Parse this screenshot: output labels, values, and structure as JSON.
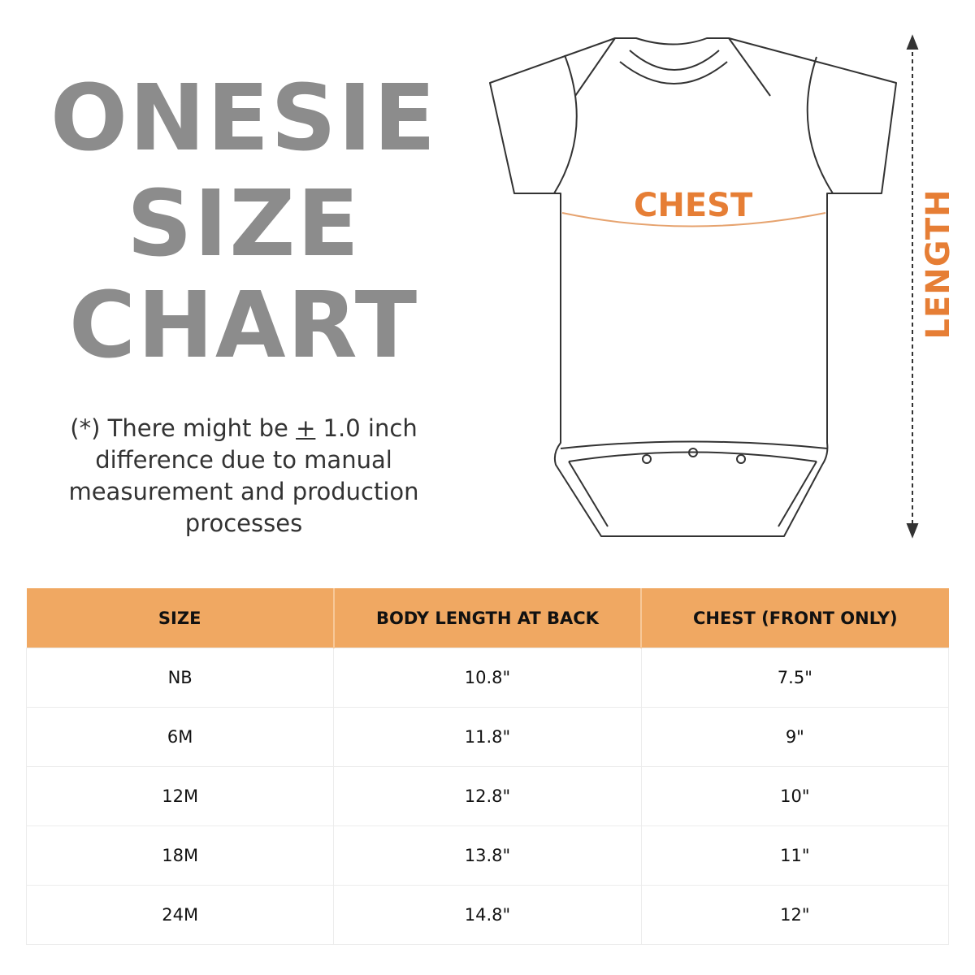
{
  "title": {
    "line1": "ONESIE",
    "line2": "SIZE",
    "line3": "CHART"
  },
  "note": {
    "prefix": "(*) There might be ",
    "plus_minus": "+",
    "suffix": " 1.0 inch difference due to manual measurement and production processes"
  },
  "diagram": {
    "chest_label": "CHEST",
    "length_label": "LENGTH",
    "accent_color": "#e67e35"
  },
  "table": {
    "header_color": "#f0a862",
    "headers": [
      "SIZE",
      "BODY LENGTH AT BACK",
      "CHEST (FRONT ONLY)"
    ],
    "rows": [
      [
        "NB",
        "10.8\"",
        "7.5\""
      ],
      [
        "6M",
        "11.8\"",
        "9\""
      ],
      [
        "12M",
        "12.8\"",
        "10\""
      ],
      [
        "18M",
        "13.8\"",
        "11\""
      ],
      [
        "24M",
        "14.8\"",
        "12\""
      ]
    ]
  }
}
